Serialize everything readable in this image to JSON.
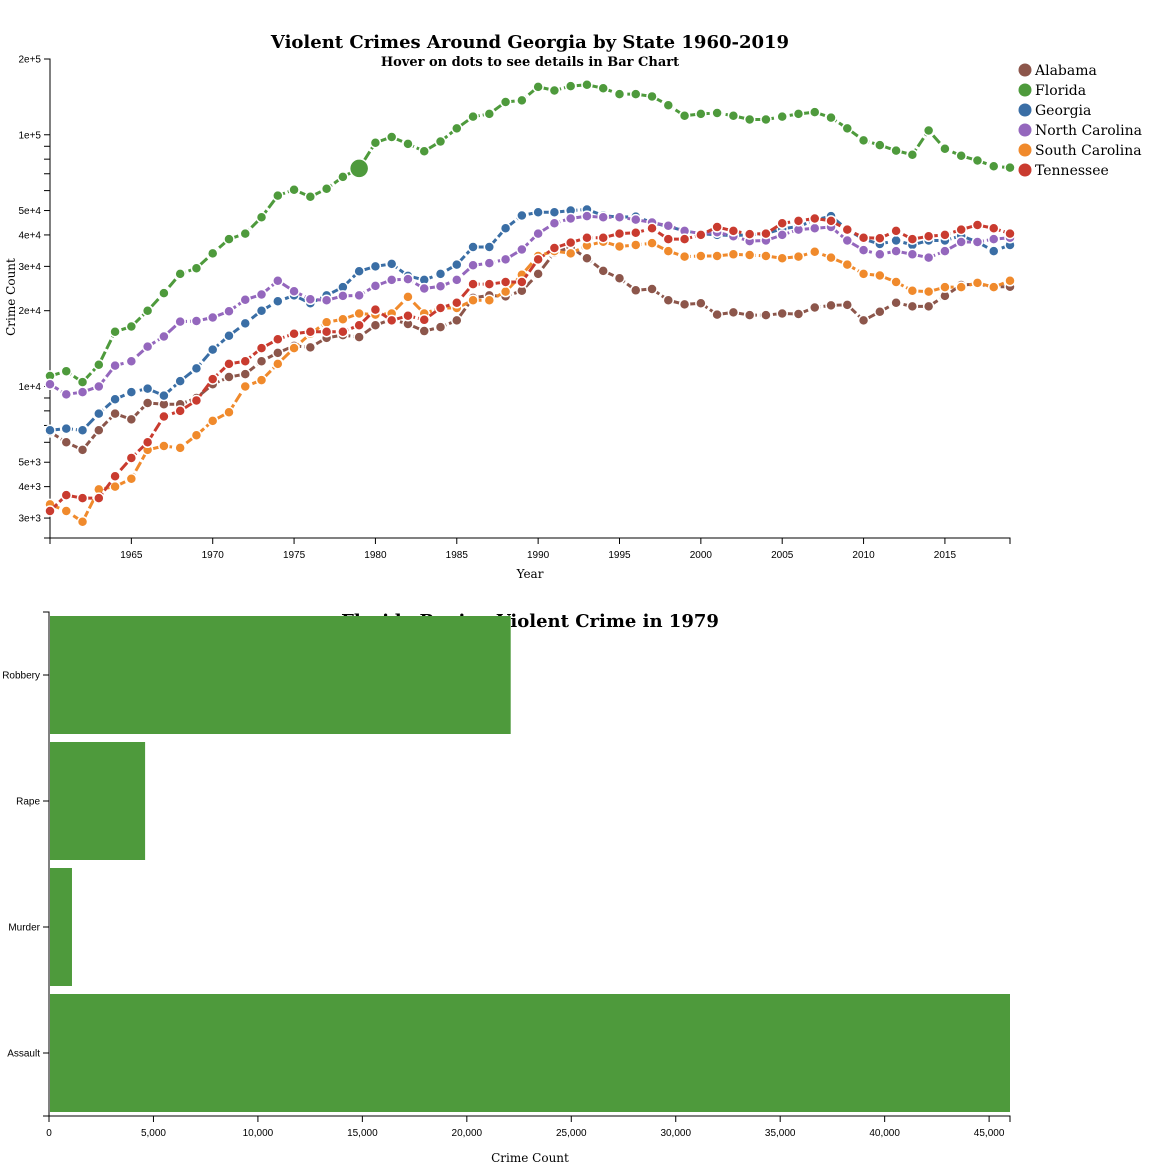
{
  "chart_data": [
    {
      "type": "line",
      "title": "Violent Crimes Around Georgia by State 1960-2019",
      "subtitle": "Hover on dots to see details in Bar Chart",
      "xlabel": "Year",
      "ylabel": "Crime Count",
      "yscale": "log",
      "xlim": [
        1960,
        2019
      ],
      "ylim": [
        2500,
        200000
      ],
      "x_ticks": [
        1965,
        1970,
        1975,
        1980,
        1985,
        1990,
        1995,
        2000,
        2005,
        2010,
        2015
      ],
      "y_ticks": [
        {
          "value": 200000,
          "label": "2e+5"
        },
        {
          "value": 100000,
          "label": "1e+5"
        },
        {
          "value": 50000,
          "label": "5e+4"
        },
        {
          "value": 40000,
          "label": "4e+4"
        },
        {
          "value": 30000,
          "label": "3e+4"
        },
        {
          "value": 20000,
          "label": "2e+4"
        },
        {
          "value": 10000,
          "label": "1e+4"
        },
        {
          "value": 5000,
          "label": "5e+3"
        },
        {
          "value": 4000,
          "label": "4e+3"
        },
        {
          "value": 3000,
          "label": "3e+3"
        }
      ],
      "y_minor_ticks": [
        90000,
        80000,
        70000,
        60000,
        9000,
        8000,
        7000,
        6000
      ],
      "legend_position": "top-right",
      "highlight": {
        "series": "Florida",
        "year": 1979
      },
      "x": [
        1960,
        1961,
        1962,
        1963,
        1964,
        1965,
        1966,
        1967,
        1968,
        1969,
        1970,
        1971,
        1972,
        1973,
        1974,
        1975,
        1976,
        1977,
        1978,
        1979,
        1980,
        1981,
        1982,
        1983,
        1984,
        1985,
        1986,
        1987,
        1988,
        1989,
        1990,
        1991,
        1992,
        1993,
        1994,
        1995,
        1996,
        1997,
        1998,
        1999,
        2000,
        2001,
        2002,
        2003,
        2004,
        2005,
        2006,
        2007,
        2008,
        2009,
        2010,
        2011,
        2012,
        2013,
        2014,
        2015,
        2016,
        2017,
        2018,
        2019
      ],
      "series": [
        {
          "name": "Alabama",
          "color": "#8c564b",
          "values": [
            6600,
            6000,
            5600,
            6700,
            7800,
            7400,
            8600,
            8500,
            8500,
            9000,
            10200,
            10900,
            11200,
            12600,
            13600,
            14500,
            14300,
            15600,
            16000,
            15700,
            17500,
            18500,
            17700,
            16600,
            17200,
            18300,
            22500,
            23000,
            22800,
            24000,
            28000,
            34000,
            35700,
            32300,
            28800,
            26900,
            24100,
            24400,
            22000,
            21200,
            21400,
            19300,
            19700,
            19200,
            19200,
            19500,
            19400,
            20600,
            21000,
            21100,
            18300,
            19800,
            21500,
            20800,
            20800,
            22900,
            25300,
            25500,
            24900,
            24900
          ]
        },
        {
          "name": "Florida",
          "color": "#4e9a3c",
          "values": [
            11000,
            11500,
            10400,
            12200,
            16500,
            17300,
            20000,
            23500,
            28000,
            29500,
            33800,
            38500,
            40500,
            47000,
            57300,
            60500,
            56700,
            61000,
            68000,
            73500,
            93000,
            98000,
            92000,
            86000,
            94000,
            106000,
            118000,
            121000,
            135000,
            137000,
            155000,
            150000,
            156000,
            158000,
            153000,
            145000,
            145000,
            142000,
            131000,
            119000,
            121000,
            122000,
            119000,
            115000,
            115000,
            118000,
            121000,
            123000,
            117000,
            106000,
            95000,
            91000,
            86500,
            83300,
            104000,
            88000,
            82500,
            79000,
            75000,
            74000
          ]
        },
        {
          "name": "Georgia",
          "color": "#3a6ea5",
          "values": [
            6700,
            6800,
            6700,
            7800,
            8900,
            9500,
            9800,
            9200,
            10500,
            11800,
            14000,
            15900,
            17800,
            20000,
            21800,
            23000,
            21400,
            23000,
            24800,
            28700,
            30000,
            30700,
            27500,
            26500,
            28000,
            30500,
            35800,
            35800,
            42500,
            47800,
            49200,
            49200,
            50000,
            50500,
            47800,
            47000,
            47300,
            44800,
            43200,
            41500,
            40500,
            40000,
            39800,
            40000,
            40500,
            42300,
            43200,
            45800,
            47500,
            42000,
            38500,
            36800,
            38000,
            36500,
            38000,
            38000,
            39700,
            37500,
            34500,
            36500
          ]
        },
        {
          "name": "North Carolina",
          "color": "#9467bd",
          "values": [
            10200,
            9300,
            9500,
            10000,
            12100,
            12600,
            14400,
            15800,
            18100,
            18200,
            18800,
            19900,
            22100,
            23200,
            26300,
            23900,
            22200,
            22000,
            22900,
            23000,
            25100,
            26500,
            26700,
            24500,
            25000,
            26500,
            30300,
            30900,
            32000,
            35000,
            40500,
            44500,
            46500,
            47500,
            47000,
            47000,
            46000,
            44800,
            43500,
            41500,
            40500,
            41000,
            39500,
            37800,
            38000,
            40000,
            42000,
            42500,
            43000,
            38000,
            34800,
            33500,
            34500,
            33500,
            32500,
            34500,
            37500,
            37500,
            38500,
            39000
          ]
        },
        {
          "name": "South Carolina",
          "color": "#f08a2c",
          "values": [
            3400,
            3200,
            2900,
            3900,
            4000,
            4300,
            5600,
            5800,
            5700,
            6400,
            7300,
            7900,
            10000,
            10600,
            12300,
            14200,
            16200,
            18000,
            18500,
            19500,
            19300,
            19500,
            22700,
            19500,
            20500,
            20500,
            22000,
            22000,
            23800,
            27800,
            33000,
            34500,
            33800,
            36300,
            37600,
            36000,
            36500,
            37100,
            34500,
            32800,
            33000,
            33000,
            33500,
            33300,
            33000,
            32300,
            32800,
            34300,
            32500,
            30500,
            28000,
            27600,
            26000,
            24000,
            23800,
            24800,
            24800,
            25800,
            24800,
            26300
          ]
        },
        {
          "name": "Tennessee",
          "color": "#c93b2f",
          "values": [
            3200,
            3700,
            3600,
            3600,
            4400,
            5200,
            6000,
            7600,
            8000,
            8800,
            10700,
            12300,
            12600,
            14200,
            15400,
            16200,
            16500,
            16500,
            16500,
            17500,
            20200,
            18300,
            19100,
            18400,
            20500,
            21500,
            25500,
            25500,
            26000,
            26000,
            32000,
            35500,
            37300,
            39000,
            39000,
            40500,
            40800,
            42500,
            38500,
            38500,
            40000,
            43000,
            41500,
            40300,
            40500,
            44500,
            45500,
            46500,
            45500,
            42000,
            39000,
            38800,
            41500,
            38500,
            39500,
            40000,
            42000,
            43800,
            42500,
            40500
          ]
        }
      ]
    },
    {
      "type": "bar",
      "orientation": "horizontal",
      "title": "Florida Region Violent Crime in 1979",
      "xlabel": "Crime Count",
      "xlim": [
        0,
        46000
      ],
      "x_ticks": [
        0,
        5000,
        10000,
        15000,
        20000,
        25000,
        30000,
        35000,
        40000,
        45000
      ],
      "x_tick_labels": [
        "0",
        "5,000",
        "10,000",
        "15,000",
        "20,000",
        "25,000",
        "30,000",
        "35,000",
        "40,000",
        "45,000"
      ],
      "color": "#4e9a3c",
      "categories": [
        "Robbery",
        "Rape",
        "Murder",
        "Assault"
      ],
      "values": [
        22100,
        4600,
        1100,
        46000
      ]
    }
  ]
}
